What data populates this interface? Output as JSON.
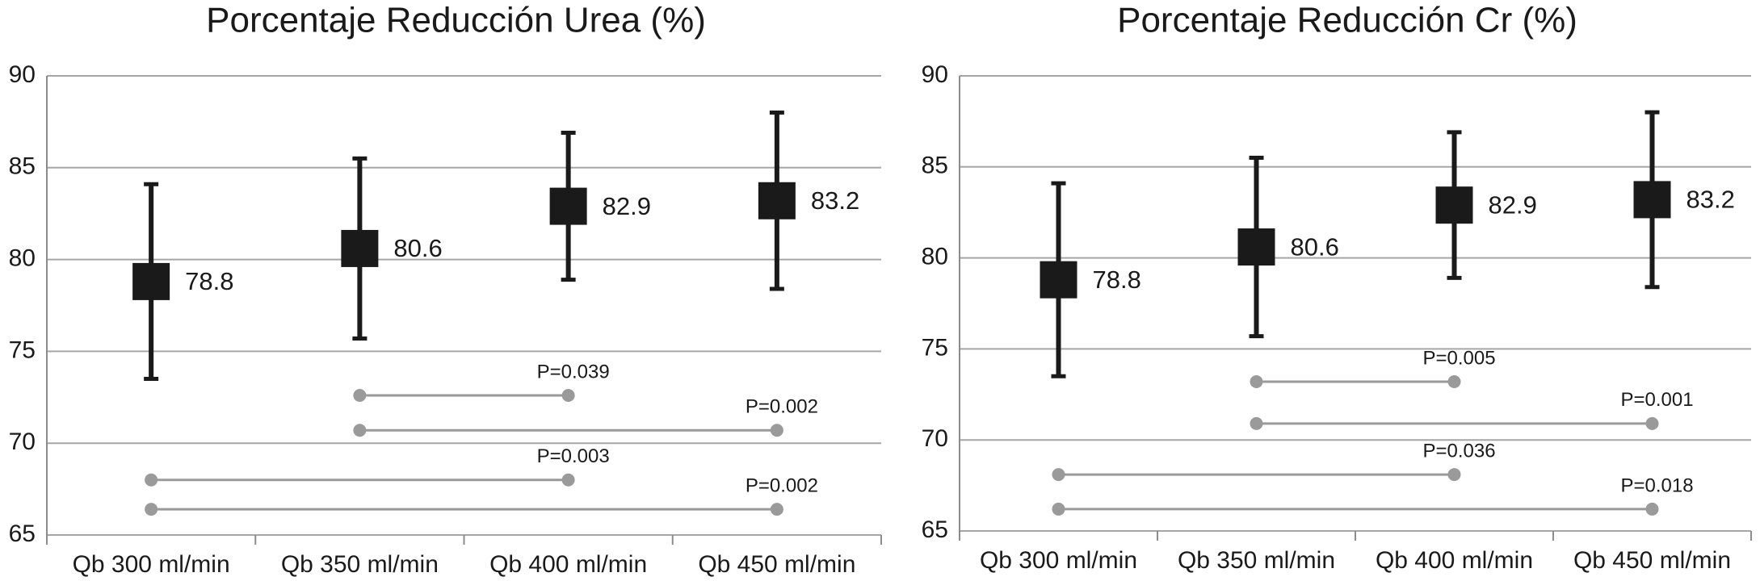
{
  "chart_data": [
    {
      "type": "errorbar",
      "title": "Porcentaje Reducción Urea (%)",
      "categories": [
        "Qb 300 ml/min",
        "Qb 350 ml/min",
        "Qb 400 ml/min",
        "Qb 450 ml/min"
      ],
      "values": [
        78.8,
        80.6,
        82.9,
        83.2
      ],
      "low": [
        73.5,
        75.7,
        78.9,
        78.4
      ],
      "high": [
        84.1,
        85.5,
        86.9,
        88.0
      ],
      "color": "#1a1a1a",
      "comparisons": [
        {
          "from": "Qb 350 ml/min",
          "to": "Qb 400 ml/min",
          "y": 72.6,
          "label": "P=0.039"
        },
        {
          "from": "Qb 350 ml/min",
          "to": "Qb 450 ml/min",
          "y": 70.7,
          "label": "P=0.002"
        },
        {
          "from": "Qb 300 ml/min",
          "to": "Qb 400 ml/min",
          "y": 68.0,
          "label": "P=0.003"
        },
        {
          "from": "Qb 300 ml/min",
          "to": "Qb 450 ml/min",
          "y": 66.4,
          "label": "P=0.002"
        }
      ],
      "comparison_color": "#9a9a9a",
      "ylim": [
        65,
        90
      ],
      "yticks": [
        65,
        70,
        75,
        80,
        85,
        90
      ],
      "grid": true
    },
    {
      "type": "errorbar",
      "title": "Porcentaje Reducción Cr (%)",
      "categories": [
        "Qb 300 ml/min",
        "Qb 350 ml/min",
        "Qb 400 ml/min",
        "Qb 450 ml/min"
      ],
      "values": [
        78.8,
        80.6,
        82.9,
        83.2
      ],
      "low": [
        73.5,
        75.7,
        78.9,
        78.4
      ],
      "high": [
        84.1,
        85.5,
        86.9,
        88.0
      ],
      "color": "#1a1a1a",
      "comparisons": [
        {
          "from": "Qb 350 ml/min",
          "to": "Qb 400 ml/min",
          "y": 73.2,
          "label": "P=0.005"
        },
        {
          "from": "Qb 350 ml/min",
          "to": "Qb 450 ml/min",
          "y": 70.9,
          "label": "P=0.001"
        },
        {
          "from": "Qb 300 ml/min",
          "to": "Qb 400 ml/min",
          "y": 68.1,
          "label": "P=0.036"
        },
        {
          "from": "Qb 300 ml/min",
          "to": "Qb 450 ml/min",
          "y": 66.2,
          "label": "P=0.018"
        }
      ],
      "comparison_color": "#9a9a9a",
      "ylim": [
        65,
        90
      ],
      "yticks": [
        65,
        70,
        75,
        80,
        85,
        90
      ],
      "grid": true
    }
  ]
}
